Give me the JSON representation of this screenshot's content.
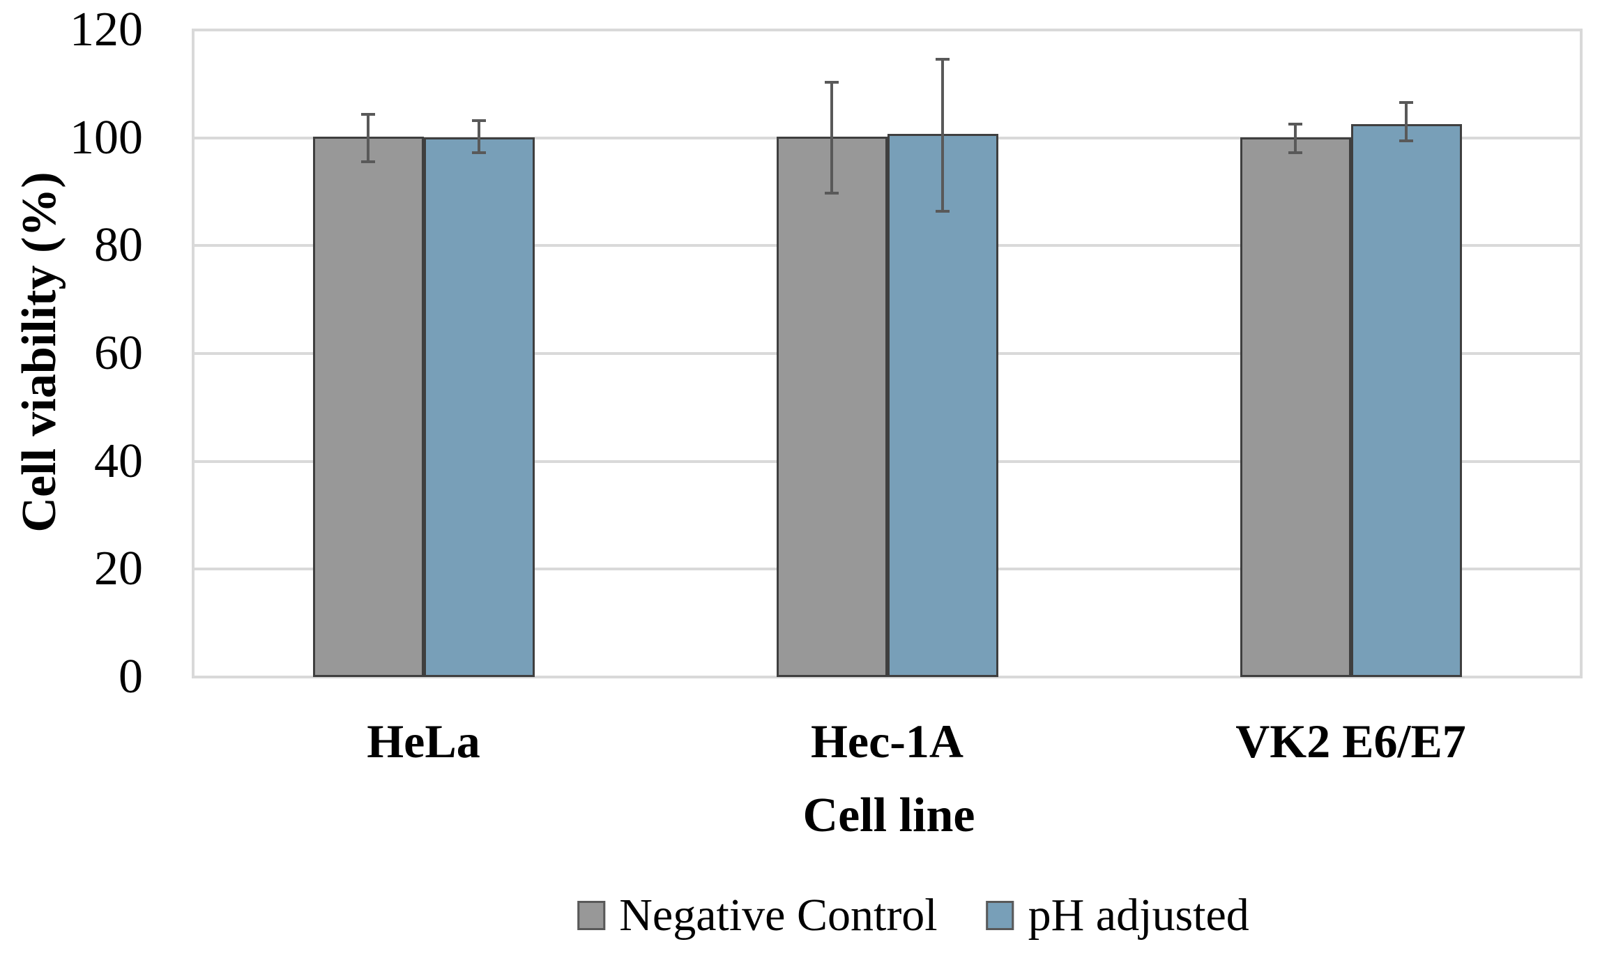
{
  "chart_data": {
    "type": "bar",
    "title": "",
    "xlabel": "Cell line",
    "ylabel": "Cell viability (%)",
    "categories": [
      "HeLa",
      "Hec-1A",
      "VK2 E6/E7"
    ],
    "series": [
      {
        "name": "Negative Control",
        "color": "#989898",
        "values": [
          100.2,
          100.2,
          100.1
        ],
        "err_up": [
          4.2,
          10.1,
          2.5
        ],
        "err_down": [
          4.7,
          10.5,
          2.9
        ]
      },
      {
        "name": "pH adjusted",
        "color": "#789FB8",
        "values": [
          100.1,
          100.7,
          102.6
        ],
        "err_up": [
          3.1,
          13.9,
          4.0
        ],
        "err_down": [
          2.9,
          14.3,
          3.2
        ]
      }
    ],
    "ylim": [
      0,
      120
    ],
    "ytick_step": 20,
    "yticks": [
      "0",
      "20",
      "40",
      "60",
      "80",
      "100",
      "120"
    ],
    "grid": true,
    "legend_position": "bottom",
    "styles": {
      "background": "#FFFFFF",
      "grid_color": "#D9D9D9",
      "bar_border_color": "#3F3F3F",
      "error_bar_color": "#595959",
      "text_color": "#000000",
      "legend_swatch_border_color": "#595959"
    }
  }
}
